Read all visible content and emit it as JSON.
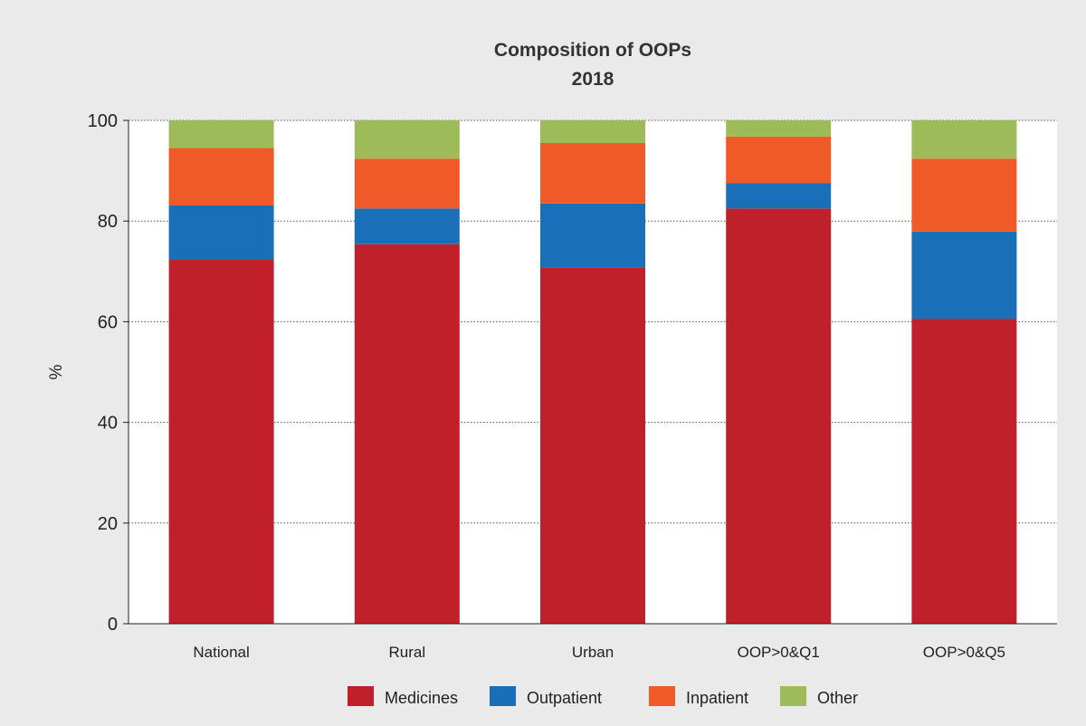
{
  "chart_data": {
    "type": "bar",
    "stacked": true,
    "title": [
      "Composition of OOPs",
      "2018"
    ],
    "ylabel": "%",
    "xlabel": "",
    "ylim": [
      0,
      100
    ],
    "yticks": [
      0,
      20,
      40,
      60,
      80,
      100
    ],
    "grid": "horizontal dotted",
    "legend_position": "bottom",
    "categories": [
      "National",
      "Rural",
      "Urban",
      "OOP>0&Q1",
      "OOP>0&Q5"
    ],
    "series": [
      {
        "name": "Medicines",
        "color": "#c0202a",
        "values": [
          72.3,
          75.4,
          70.8,
          82.5,
          60.6
        ]
      },
      {
        "name": "Outpatient",
        "color": "#1a70b8",
        "values": [
          10.8,
          7.1,
          12.7,
          5.0,
          17.3
        ]
      },
      {
        "name": "Inpatient",
        "color": "#f05a28",
        "values": [
          11.4,
          9.9,
          12.0,
          9.3,
          14.5
        ]
      },
      {
        "name": "Other",
        "color": "#9dbb59",
        "values": [
          5.5,
          7.6,
          4.5,
          3.2,
          7.6
        ]
      }
    ]
  }
}
